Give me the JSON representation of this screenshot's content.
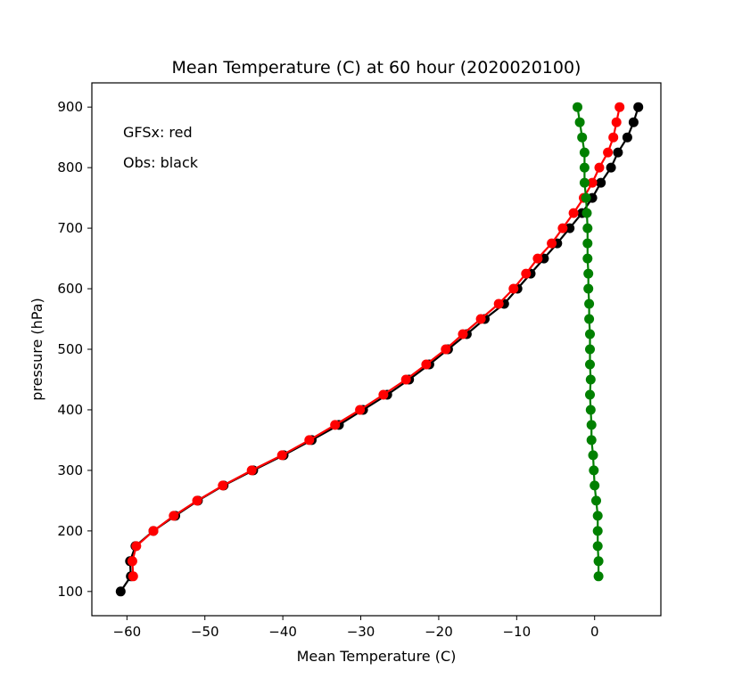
{
  "chart_data": {
    "type": "line",
    "title": "Mean Temperature (C) at 60 hour (2020020100)",
    "xlabel": "Mean Temperature (C)",
    "ylabel": "pressure (hPa)",
    "xlim": [
      -64.5,
      8.5
    ],
    "ylim": [
      60,
      940
    ],
    "xticks": [
      -60,
      -50,
      -40,
      -30,
      -20,
      -10,
      0
    ],
    "xtick_labels": [
      "−60",
      "−50",
      "−40",
      "−30",
      "−20",
      "−10",
      "0"
    ],
    "yticks": [
      100,
      200,
      300,
      400,
      500,
      600,
      700,
      800,
      900
    ],
    "ytick_labels": [
      "100",
      "200",
      "300",
      "400",
      "500",
      "600",
      "700",
      "800",
      "900"
    ],
    "grid": false,
    "annotations": [
      "GFSx: red",
      "Obs: black"
    ],
    "series": [
      {
        "color": "#000000",
        "points": [
          [
            -60.8,
            100
          ],
          [
            -59.5,
            125
          ],
          [
            -59.6,
            150
          ],
          [
            -58.9,
            175
          ],
          [
            -56.6,
            200
          ],
          [
            -53.8,
            225
          ],
          [
            -50.9,
            250
          ],
          [
            -47.6,
            275
          ],
          [
            -43.8,
            300
          ],
          [
            -39.9,
            325
          ],
          [
            -36.3,
            350
          ],
          [
            -32.8,
            375
          ],
          [
            -29.7,
            400
          ],
          [
            -26.6,
            425
          ],
          [
            -23.8,
            450
          ],
          [
            -21.2,
            475
          ],
          [
            -18.8,
            500
          ],
          [
            -16.4,
            525
          ],
          [
            -14.1,
            550
          ],
          [
            -11.6,
            575
          ],
          [
            -9.9,
            600
          ],
          [
            -8.2,
            625
          ],
          [
            -6.5,
            650
          ],
          [
            -4.8,
            675
          ],
          [
            -3.2,
            700
          ],
          [
            -1.6,
            725
          ],
          [
            -0.3,
            750
          ],
          [
            0.8,
            775
          ],
          [
            2.1,
            800
          ],
          [
            3.0,
            825
          ],
          [
            4.2,
            850
          ],
          [
            5.0,
            875
          ],
          [
            5.6,
            900
          ]
        ]
      },
      {
        "color": "#ff0000",
        "points": [
          [
            -59.2,
            125
          ],
          [
            -59.3,
            150
          ],
          [
            -58.8,
            175
          ],
          [
            -56.6,
            200
          ],
          [
            -54.0,
            225
          ],
          [
            -51.0,
            250
          ],
          [
            -47.7,
            275
          ],
          [
            -44.0,
            300
          ],
          [
            -40.1,
            325
          ],
          [
            -36.6,
            350
          ],
          [
            -33.3,
            375
          ],
          [
            -30.1,
            400
          ],
          [
            -27.1,
            425
          ],
          [
            -24.2,
            450
          ],
          [
            -21.6,
            475
          ],
          [
            -19.1,
            500
          ],
          [
            -16.9,
            525
          ],
          [
            -14.6,
            550
          ],
          [
            -12.3,
            575
          ],
          [
            -10.4,
            600
          ],
          [
            -8.8,
            625
          ],
          [
            -7.3,
            650
          ],
          [
            -5.5,
            675
          ],
          [
            -4.1,
            700
          ],
          [
            -2.7,
            725
          ],
          [
            -1.4,
            750
          ],
          [
            -0.3,
            775
          ],
          [
            0.6,
            800
          ],
          [
            1.7,
            825
          ],
          [
            2.4,
            850
          ],
          [
            2.8,
            875
          ],
          [
            3.2,
            900
          ]
        ]
      },
      {
        "color": "#008000",
        "points": [
          [
            0.5,
            125
          ],
          [
            0.5,
            150
          ],
          [
            0.4,
            175
          ],
          [
            0.4,
            200
          ],
          [
            0.4,
            225
          ],
          [
            0.2,
            250
          ],
          [
            0.0,
            275
          ],
          [
            -0.1,
            300
          ],
          [
            -0.2,
            325
          ],
          [
            -0.4,
            350
          ],
          [
            -0.4,
            375
          ],
          [
            -0.5,
            400
          ],
          [
            -0.6,
            425
          ],
          [
            -0.5,
            450
          ],
          [
            -0.6,
            475
          ],
          [
            -0.6,
            500
          ],
          [
            -0.6,
            525
          ],
          [
            -0.7,
            550
          ],
          [
            -0.7,
            575
          ],
          [
            -0.8,
            600
          ],
          [
            -0.8,
            625
          ],
          [
            -0.9,
            650
          ],
          [
            -0.9,
            675
          ],
          [
            -0.9,
            700
          ],
          [
            -1.0,
            725
          ],
          [
            -1.1,
            750
          ],
          [
            -1.3,
            775
          ],
          [
            -1.3,
            800
          ],
          [
            -1.3,
            825
          ],
          [
            -1.6,
            850
          ],
          [
            -1.9,
            875
          ],
          [
            -2.2,
            900
          ]
        ]
      }
    ]
  }
}
